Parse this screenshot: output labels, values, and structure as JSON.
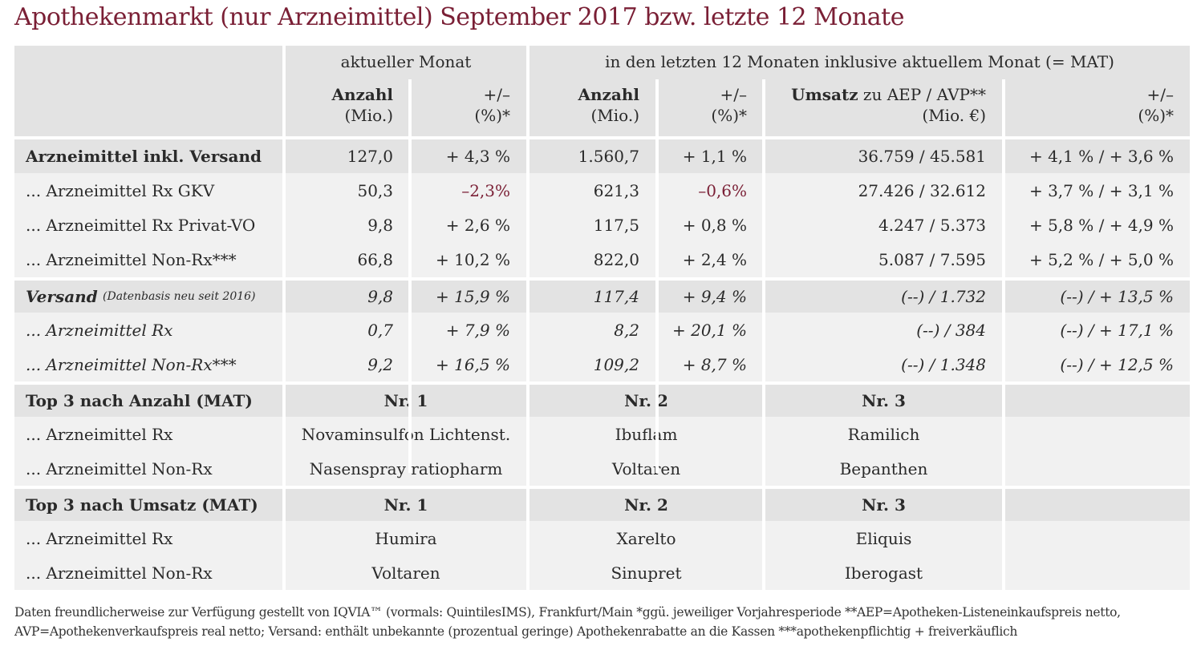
{
  "title": "Apothekenmarkt (nur Arzneimittel) September 2017 bzw. letzte 12 Monate",
  "colors": {
    "accent": "#7a1f35",
    "band_dark": "#e3e3e3",
    "band_light": "#f1f1f1"
  },
  "header": {
    "group_current": "aktueller Monat",
    "group_mat": "in den letzten 12 Monaten inklusive aktuellem Monat (= MAT)",
    "anzahl": "Anzahl",
    "mio": "(Mio.)",
    "plusminus": "+/–",
    "pct": "(%)*",
    "umsatz": "Umsatz",
    "umsatz_rest": " zu AEP / AVP**",
    "mio_eur": "(Mio. €)"
  },
  "rows": [
    {
      "label": "Arzneimittel inkl. Versand",
      "a1": "127,0",
      "p1": "+ 4,3 %",
      "a2": "1.560,7",
      "p2": "+ 1,1 %",
      "u": "36.759 / 45.581",
      "p3": "+ 4,1 % / + 3,6 %"
    },
    {
      "label": "... Arzneimittel Rx GKV",
      "a1": "50,3",
      "p1": "–2,3%",
      "a2": "621,3",
      "p2": "–0,6%",
      "u": "27.426 / 32.612",
      "p3": "+ 3,7 % / + 3,1 %"
    },
    {
      "label": "... Arzneimittel Rx Privat-VO",
      "a1": "9,8",
      "p1": "+ 2,6 %",
      "a2": "117,5",
      "p2": "+ 0,8 %",
      "u": "4.247 / 5.373",
      "p3": "+ 5,8 % / + 4,9 %"
    },
    {
      "label": "... Arzneimittel Non-Rx***",
      "a1": "66,8",
      "p1": "+ 10,2 %",
      "a2": "822,0",
      "p2": "+ 2,4 %",
      "u": "5.087 / 7.595",
      "p3": "+ 5,2 % / + 5,0 %"
    },
    {
      "label": "Versand",
      "note": "(Datenbasis neu seit 2016)",
      "a1": "9,8",
      "p1": "+ 15,9 %",
      "a2": "117,4",
      "p2": "+ 9,4 %",
      "u": "(--) / 1.732",
      "p3": "(--) / + 13,5 %"
    },
    {
      "label": "... Arzneimittel Rx",
      "a1": "0,7",
      "p1": "+ 7,9 %",
      "a2": "8,2",
      "p2": "+ 20,1 %",
      "u": "(--) / 384",
      "p3": "(--) / + 17,1 %"
    },
    {
      "label": "... Arzneimittel Non-Rx***",
      "a1": "9,2",
      "p1": "+ 16,5 %",
      "a2": "109,2",
      "p2": "+ 8,7 %",
      "u": "(--) / 1.348",
      "p3": "(--) / + 12,5 %"
    }
  ],
  "top_anzahl": {
    "title": "Top 3 nach Anzahl (MAT)",
    "n1": "Nr. 1",
    "n2": "Nr. 2",
    "n3": "Nr. 3",
    "rx_label": "... Arzneimittel Rx",
    "rx": [
      "Novaminsulfon Lichtenst.",
      "Ibuflam",
      "Ramilich"
    ],
    "nonrx_label": "... Arzneimittel Non-Rx",
    "nonrx": [
      "Nasenspray ratiopharm",
      "Voltaren",
      "Bepanthen"
    ]
  },
  "top_umsatz": {
    "title": "Top 3 nach Umsatz (MAT)",
    "n1": "Nr. 1",
    "n2": "Nr. 2",
    "n3": "Nr. 3",
    "rx_label": "... Arzneimittel Rx",
    "rx": [
      "Humira",
      "Xarelto",
      "Eliquis"
    ],
    "nonrx_label": "... Arzneimittel Non-Rx",
    "nonrx": [
      "Voltaren",
      "Sinupret",
      "Iberogast"
    ]
  },
  "footer": {
    "line1": "Daten freundlicherweise zur Verfügung gestellt von IQVIA™ (vormals: QuintilesIMS), Frankfurt/Main  *ggü. jeweiliger Vorjahresperiode  **AEP=Apotheken-Listeneinkaufspreis netto,",
    "line2": "AVP=Apothekenverkaufspreis real netto; Versand: enthält unbekannte (prozentual geringe) Apothekenrabatte an die Kassen   ***apothekenpflichtig + freiverkäuflich"
  }
}
